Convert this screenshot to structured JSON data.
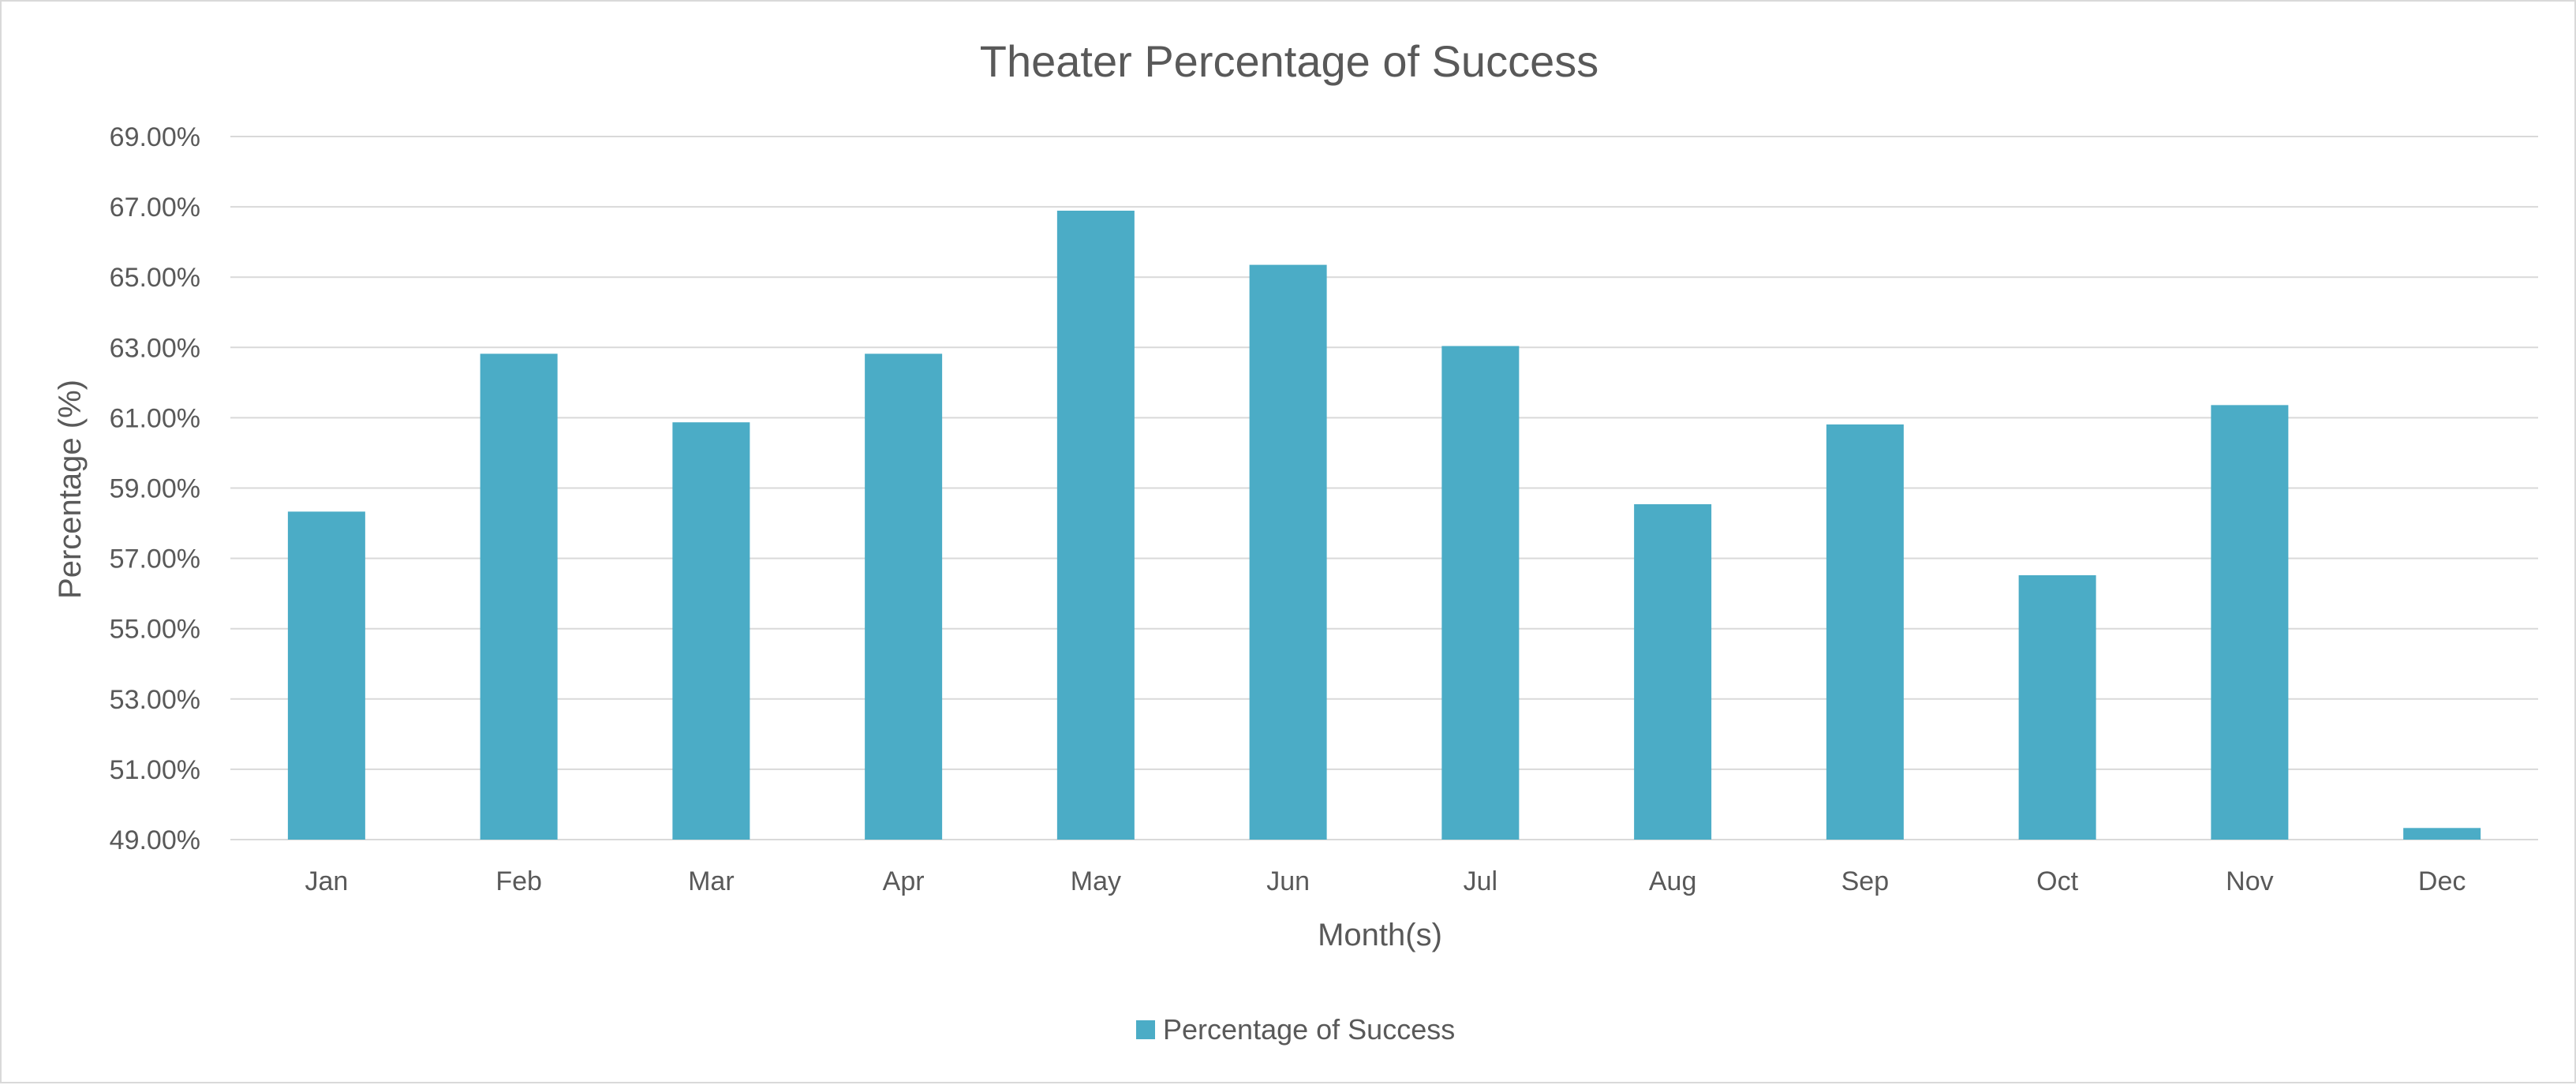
{
  "chart_data": {
    "type": "bar",
    "title": "Theater Percentage of Success",
    "xlabel": "Month(s)",
    "ylabel": "Percentage (%)",
    "categories": [
      "Jan",
      "Feb",
      "Mar",
      "Apr",
      "May",
      "Jun",
      "Jul",
      "Aug",
      "Sep",
      "Oct",
      "Nov",
      "Dec"
    ],
    "series": [
      {
        "name": "Percentage of Success",
        "color": "#4BACC6",
        "values": [
          58.33,
          62.82,
          60.87,
          62.82,
          66.89,
          65.35,
          63.04,
          58.54,
          60.81,
          56.52,
          61.36,
          49.33
        ]
      }
    ],
    "ylim": [
      49,
      69
    ],
    "yticks": [
      49,
      51,
      53,
      55,
      57,
      59,
      61,
      63,
      65,
      67,
      69
    ],
    "ytick_labels": [
      "49.00%",
      "51.00%",
      "53.00%",
      "55.00%",
      "57.00%",
      "59.00%",
      "61.00%",
      "63.00%",
      "65.00%",
      "67.00%",
      "69.00%"
    ],
    "grid": true,
    "legend_position": "bottom"
  }
}
